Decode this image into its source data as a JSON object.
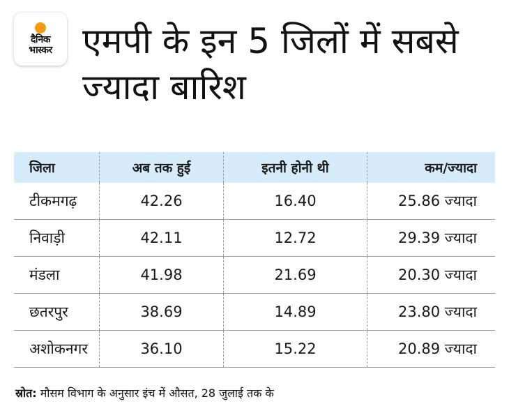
{
  "logo": {
    "line1": "दैनिक",
    "line2": "भास्कर"
  },
  "title": "एमपी के इन 5 जिलों में सबसे ज्यादा बारिश",
  "table": {
    "headers": [
      "जिला",
      "अब तक हुई",
      "इतनी होनी थी",
      "कम/ज्यादा"
    ],
    "rows": [
      [
        "टीकमगढ़",
        "42.26",
        "16.40",
        "25.86 ज्यादा"
      ],
      [
        "निवाड़ी",
        "42.11",
        "12.72",
        "29.39 ज्यादा"
      ],
      [
        "मंडला",
        "41.98",
        "21.69",
        "20.30 ज्यादा"
      ],
      [
        "छतरपुर",
        "38.69",
        "14.89",
        "23.80 ज्यादा"
      ],
      [
        "अशोकनगर",
        "36.10",
        "15.22",
        "20.89 ज्यादा"
      ]
    ]
  },
  "source": {
    "label": "स्रोत:",
    "text": " मौसम विभाग के अनुसार इंच में औसत, 28 जुलाई तक के"
  },
  "colors": {
    "header_bg": "#d6ecfb",
    "logo_sun": "#f39c12"
  }
}
